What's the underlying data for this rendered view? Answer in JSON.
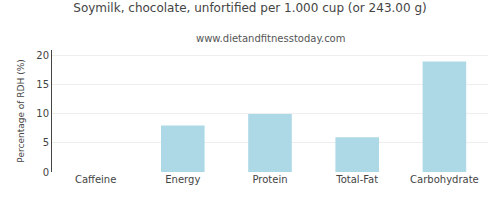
{
  "chart_data": {
    "type": "bar",
    "title": "Soymilk, chocolate, unfortified per 1.000 cup (or 243.00 g)",
    "subtitle": "www.dietandfitnesstoday.com",
    "categories": [
      "Caffeine",
      "Energy",
      "Protein",
      "Total-Fat",
      "Carbohydrate"
    ],
    "values": [
      0,
      8,
      10,
      6,
      19
    ],
    "color": "#add8e6",
    "ylabel": "Percentage of RDH (%)",
    "ylim": [
      0,
      21
    ],
    "yticks": [
      0,
      5,
      10,
      15,
      20
    ],
    "grid": true
  }
}
